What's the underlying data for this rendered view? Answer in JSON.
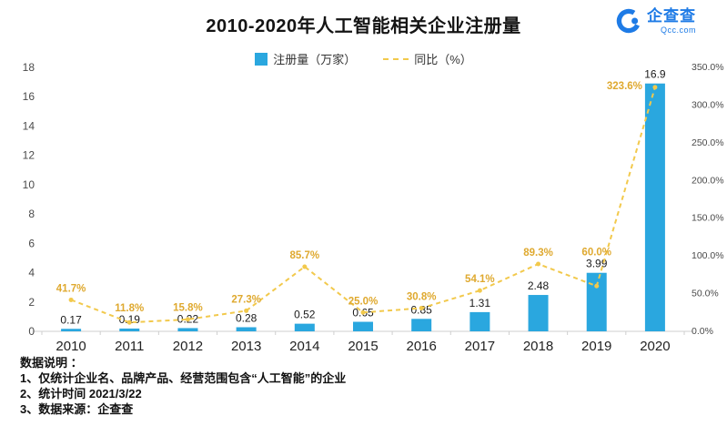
{
  "header": {
    "title": "2010-2020年人工智能相关企业注册量",
    "logo": {
      "name": "企查查",
      "domain": "Qcc.com",
      "color": "#1E7BE6"
    }
  },
  "legend": {
    "items": [
      {
        "label": "注册量（万家）",
        "marker": "bar-swatch",
        "color": "#2AA7DF"
      },
      {
        "label": "同比（%）",
        "marker": "dashed-line-swatch",
        "color": "#F2C94C"
      }
    ]
  },
  "chart_data": {
    "type": "bar",
    "title": "2010-2020年人工智能相关企业注册量",
    "categories": [
      "2010",
      "2011",
      "2012",
      "2013",
      "2014",
      "2015",
      "2016",
      "2017",
      "2018",
      "2019",
      "2020"
    ],
    "series": [
      {
        "name": "注册量（万家）",
        "type": "bar",
        "y_axis": "left",
        "color": "#2AA7DF",
        "values": [
          0.17,
          0.19,
          0.22,
          0.28,
          0.52,
          0.65,
          0.85,
          1.31,
          2.48,
          3.99,
          16.9
        ],
        "labels": [
          "0.17",
          "0.19",
          "0.22",
          "0.28",
          "0.52",
          "0.65",
          "0.85",
          "1.31",
          "2.48",
          "3.99",
          "16.9"
        ]
      },
      {
        "name": "同比（%）",
        "type": "line",
        "line_style": "dashed",
        "y_axis": "right",
        "color": "#F2C94C",
        "label_color": "#DFA92F",
        "values": [
          41.7,
          11.8,
          15.8,
          27.3,
          85.7,
          25.0,
          30.8,
          54.1,
          89.3,
          60.0,
          323.6
        ],
        "labels": [
          "41.7%",
          "11.8%",
          "15.8%",
          "27.3%",
          "85.7%",
          "25.0%",
          "30.8%",
          "54.1%",
          "89.3%",
          "60.0%",
          "323.6%"
        ]
      }
    ],
    "left_axis": {
      "min": 0,
      "max": 18,
      "tick_values": [
        0,
        2,
        4,
        6,
        8,
        10,
        12,
        14,
        16,
        18
      ],
      "tick_labels": [
        "0",
        "2",
        "4",
        "6",
        "8",
        "10",
        "12",
        "14",
        "16",
        "18"
      ]
    },
    "right_axis": {
      "min": 0,
      "max": 350,
      "tick_values": [
        0,
        50,
        100,
        150,
        200,
        250,
        300,
        350
      ],
      "tick_labels": [
        "0.0%",
        "50.0%",
        "100.0%",
        "150.0%",
        "200.0%",
        "250.0%",
        "300.0%",
        "350.0%"
      ]
    },
    "grid": false,
    "legend_position": "top"
  },
  "notes": {
    "heading": "数据说明 ：",
    "lines": [
      "1、仅统计企业名、品牌产品、经营范围包含“人工智能”的企业",
      "2、统计时间 2021/3/22",
      "3、数据来源：企查查"
    ]
  }
}
